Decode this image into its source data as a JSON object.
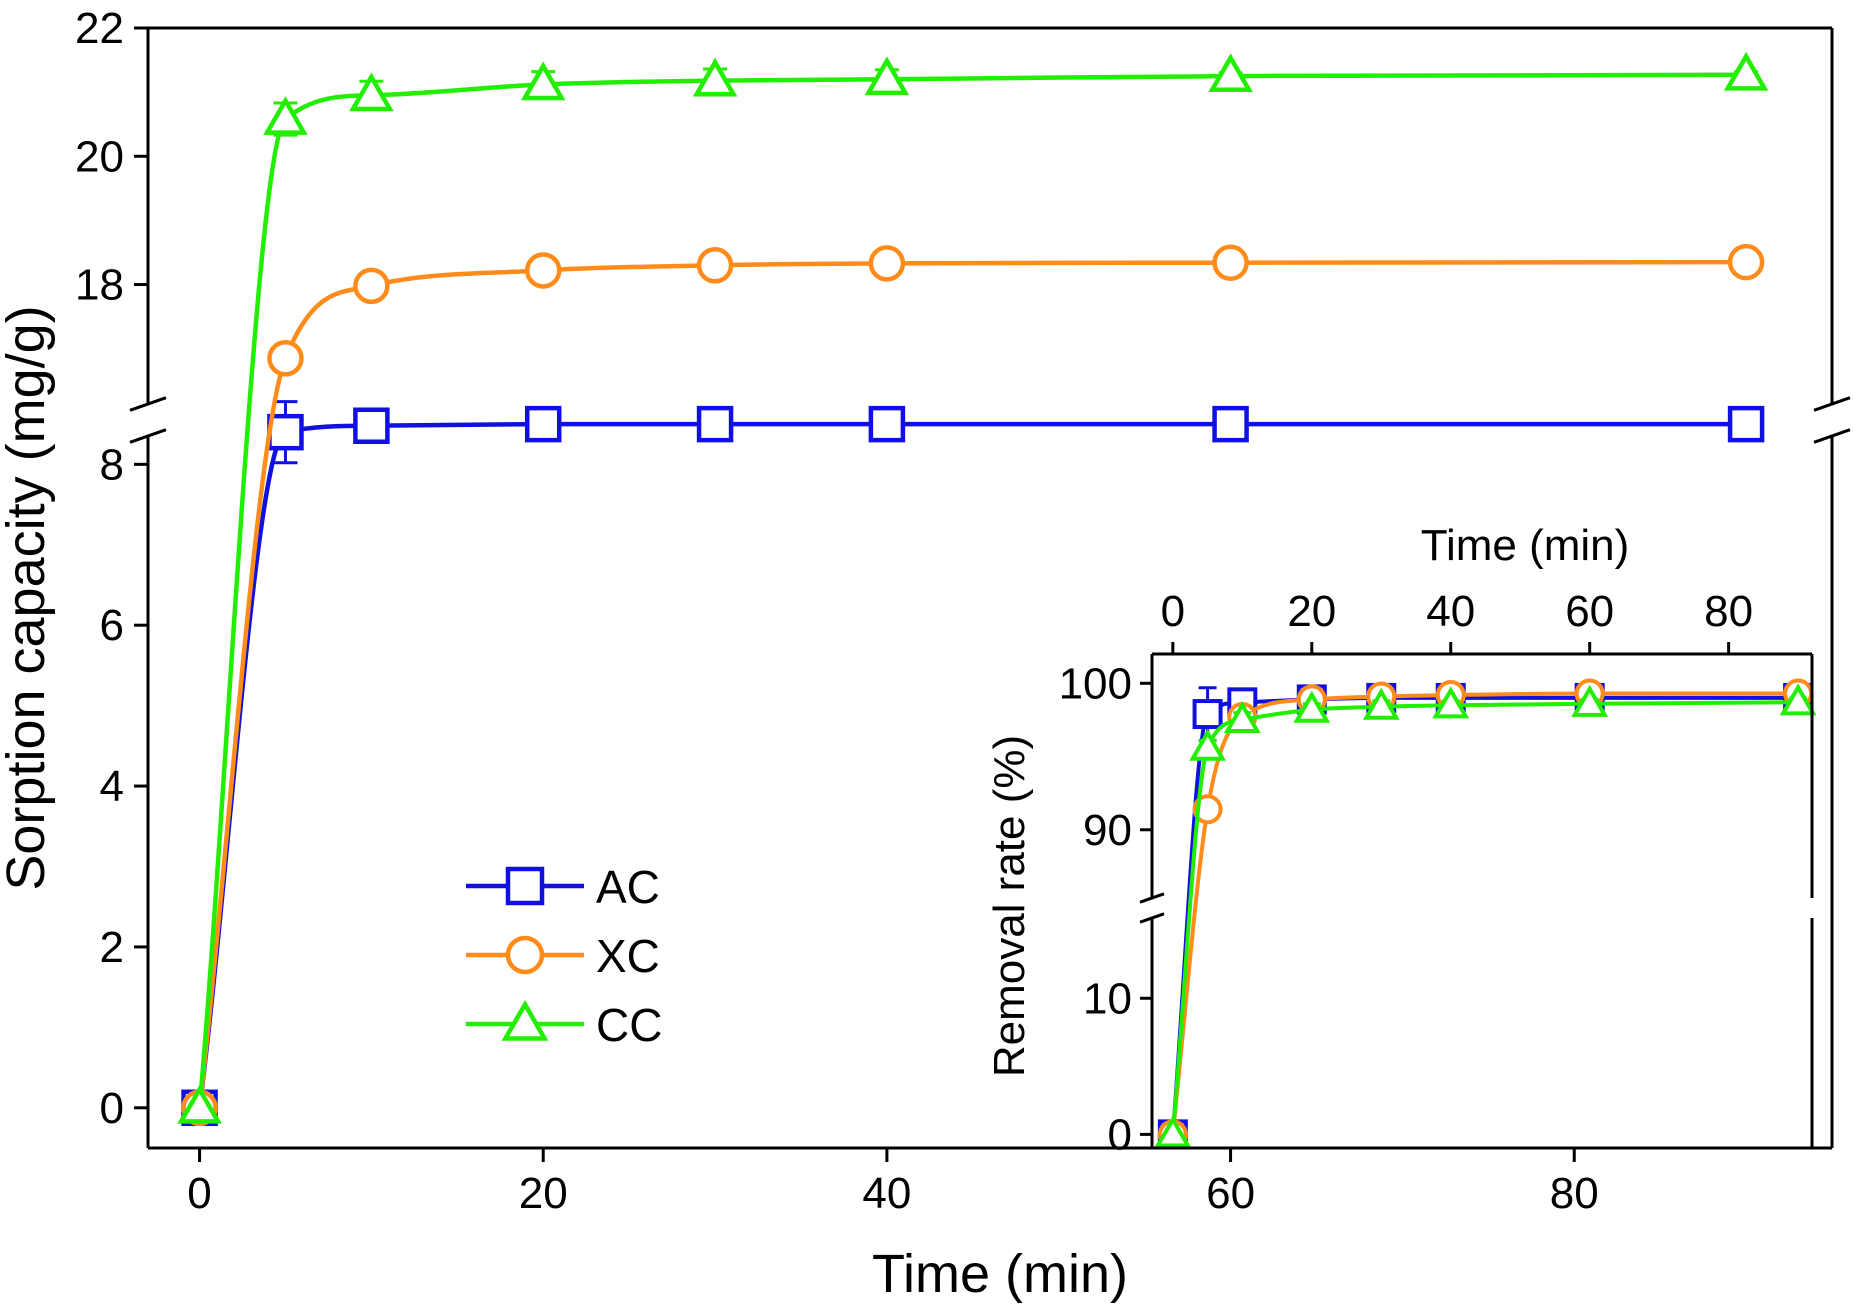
{
  "chart_data": [
    {
      "type": "line",
      "title": "",
      "xlabel": "Time (min)",
      "ylabel": "Sorption capacity (mg/g)",
      "xlim": [
        -3,
        95
      ],
      "xticks": [
        0,
        20,
        40,
        60,
        80
      ],
      "y_axis_break": true,
      "ylim_lower": [
        -0.5,
        8.8
      ],
      "ylim_upper": [
        16.2,
        22
      ],
      "yticks_lower": [
        0,
        2,
        4,
        6,
        8
      ],
      "yticks_upper": [
        18,
        20,
        22
      ],
      "legend_position": "center-left",
      "x": [
        0,
        5,
        10,
        20,
        30,
        40,
        60,
        90
      ],
      "series": [
        {
          "name": "AC",
          "marker": "square",
          "color": "#1010e0",
          "values": [
            0,
            8.4,
            8.48,
            8.5,
            8.5,
            8.5,
            8.5,
            8.5
          ],
          "errors": [
            0,
            0.38,
            0.05,
            0.04,
            0.03,
            0.03,
            0.03,
            0.03
          ]
        },
        {
          "name": "XC",
          "marker": "circle",
          "color": "#ff8c1a",
          "values": [
            0,
            16.85,
            17.98,
            18.22,
            18.3,
            18.33,
            18.34,
            18.35
          ],
          "errors": [
            0,
            0.1,
            0.12,
            0.12,
            0.12,
            0.05,
            0.05,
            0.05
          ]
        },
        {
          "name": "CC",
          "marker": "triangle",
          "color": "#22ee00",
          "values": [
            0,
            20.58,
            20.95,
            21.12,
            21.18,
            21.2,
            21.25,
            21.27
          ],
          "errors": [
            0,
            0.25,
            0.22,
            0.2,
            0.18,
            0.15,
            0.05,
            0.05
          ]
        }
      ]
    },
    {
      "type": "line",
      "title": "",
      "xlabel": "Time (min)",
      "ylabel": "Removal rate (%)",
      "xlim": [
        -3,
        92
      ],
      "xticks": [
        0,
        20,
        40,
        60,
        80
      ],
      "y_axis_break": true,
      "ylim_lower": [
        -1,
        17
      ],
      "ylim_upper": [
        85,
        102
      ],
      "yticks_lower": [
        0,
        10
      ],
      "yticks_upper": [
        90,
        100
      ],
      "x": [
        0,
        5,
        10,
        20,
        30,
        40,
        60,
        90
      ],
      "series": [
        {
          "name": "AC",
          "marker": "square",
          "color": "#1010e0",
          "values": [
            0,
            97.9,
            98.7,
            98.9,
            99.0,
            99.0,
            99.0,
            99.0
          ],
          "errors": [
            0,
            1.8,
            0.4,
            0.3,
            0.2,
            0.2,
            0.2,
            0.2
          ]
        },
        {
          "name": "XC",
          "marker": "circle",
          "color": "#ff8c1a",
          "values": [
            0,
            91.4,
            97.7,
            98.9,
            99.1,
            99.2,
            99.3,
            99.3
          ],
          "errors": [
            0,
            0.3,
            0.3,
            0.3,
            0.3,
            0.2,
            0.2,
            0.2
          ]
        },
        {
          "name": "CC",
          "marker": "triangle",
          "color": "#22ee00",
          "values": [
            0,
            95.6,
            97.5,
            98.2,
            98.4,
            98.5,
            98.6,
            98.7
          ],
          "errors": [
            0,
            0.5,
            0.5,
            0.4,
            0.4,
            0.3,
            0.3,
            0.3
          ]
        }
      ]
    }
  ]
}
